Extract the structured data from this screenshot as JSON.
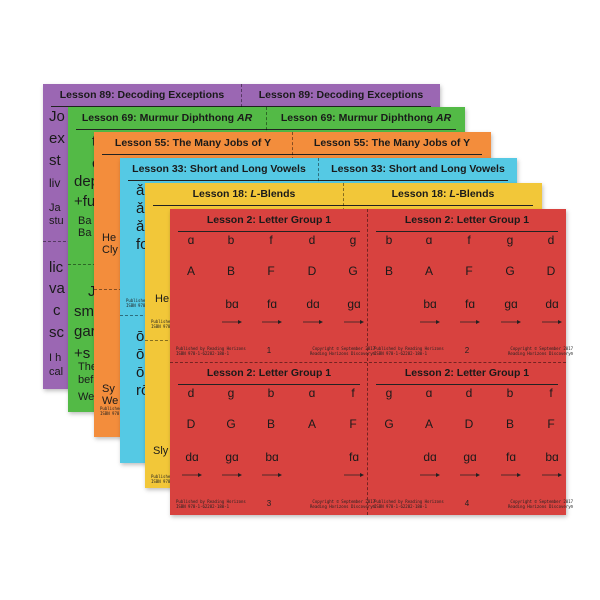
{
  "sheets": [
    {
      "id": "purple",
      "color": "#9b67b3",
      "title": "Lesson 89: Decoding Exceptions",
      "visible_fragments": [
        "Jo",
        "ex",
        "st",
        "liv",
        "Ja",
        "stu",
        "lic",
        "va",
        "c",
        "sc",
        "I h",
        "cal"
      ]
    },
    {
      "id": "green",
      "color": "#53ba46",
      "title": "Lesson 69: Murmur Diphthong AR",
      "title_prefix": "Lesson 69: Murmur Diphthong ",
      "title_italic": "AR",
      "visible_fragments": [
        "t",
        "c",
        "dep",
        "+fu",
        "Ba",
        "Ba",
        "J",
        "sm",
        "gar",
        "+s",
        "The",
        "bef",
        "We"
      ]
    },
    {
      "id": "orange",
      "color": "#f38d3c",
      "title": "Lesson 55: The Many Jobs of Y",
      "visible_fragments": [
        "He",
        "Cly",
        "Sy",
        "We"
      ]
    },
    {
      "id": "cyan",
      "color": "#55c9e4",
      "title": "Lesson 33: Short and Long Vowels",
      "visible_fragments": [
        "ǎ",
        "ǎ",
        "ǎ",
        "fo",
        "ō",
        "ō",
        "ō",
        "rō"
      ]
    },
    {
      "id": "yellow",
      "color": "#f2c739",
      "title": "Lesson 18: L-Blends",
      "title_prefix": "Lesson 18: ",
      "title_italic": "L",
      "title_suffix": "-Blends",
      "visible_fragments": [
        "He",
        "Sly"
      ]
    }
  ],
  "red_sheet": {
    "color": "#d8423f",
    "cards": [
      {
        "title": "Lesson 2: Letter Group 1",
        "row1": [
          "ɑ",
          "b",
          "f",
          "d",
          "g"
        ],
        "row2": [
          "A",
          "B",
          "F",
          "D",
          "G"
        ],
        "row3": [
          "bɑ",
          "fɑ",
          "dɑ",
          "gɑ"
        ],
        "number": "1",
        "publisher": "Published by Reading Horizons\nISBN 978-1-62282-180-1",
        "copyright": "Copyright © September 2017\nReading Horizons Discovery®"
      },
      {
        "title": "Lesson 2: Letter Group 1",
        "row1": [
          "b",
          "ɑ",
          "f",
          "g",
          "d"
        ],
        "row2": [
          "B",
          "A",
          "F",
          "G",
          "D"
        ],
        "row3": [
          "bɑ",
          "fɑ",
          "gɑ",
          "dɑ"
        ],
        "number": "2",
        "publisher": "Published by Reading Horizons\nISBN 978-1-62282-180-1",
        "copyright": "Copyright © September 2017\nReading Horizons Discovery®"
      },
      {
        "title": "Lesson 2: Letter Group 1",
        "row1": [
          "d",
          "g",
          "b",
          "ɑ",
          "f"
        ],
        "row2": [
          "D",
          "G",
          "B",
          "A",
          "F"
        ],
        "row3": [
          "dɑ",
          "gɑ",
          "bɑ",
          "fɑ"
        ],
        "number": "3",
        "publisher": "Published by Reading Horizons\nISBN 978-1-62282-180-1",
        "copyright": "Copyright © September 2017\nReading Horizons Discovery®"
      },
      {
        "title": "Lesson 2: Letter Group 1",
        "row1": [
          "g",
          "ɑ",
          "d",
          "b",
          "f"
        ],
        "row2": [
          "G",
          "A",
          "D",
          "B",
          "F"
        ],
        "row3": [
          "dɑ",
          "gɑ",
          "fɑ",
          "bɑ"
        ],
        "number": "4",
        "publisher": "Published by Reading Horizons\nISBN 978-1-62282-180-1",
        "copyright": "Copyright © September 2017\nReading Horizons Discovery®"
      }
    ]
  },
  "footer_small": {
    "publisher": "Published by Reading Horizons\nISBN 978-1-62282-180-1"
  }
}
